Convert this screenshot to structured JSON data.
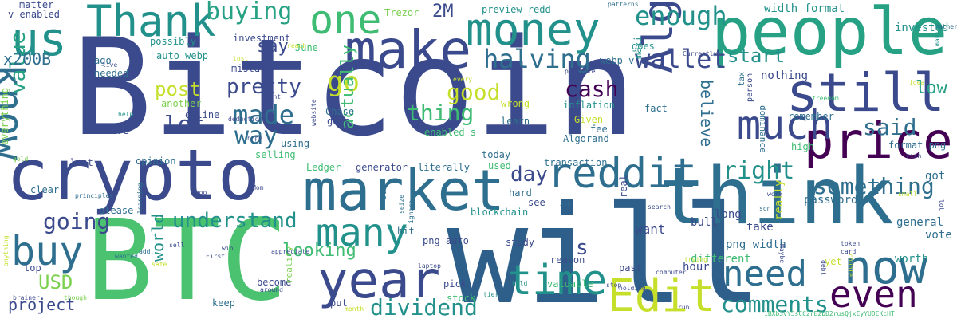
{
  "background": "#ffffff",
  "palette": [
    "#3b4a8c",
    "#2e6e8e",
    "#22918b",
    "#3fbc73",
    "#7bd04f",
    "#c6df2b",
    "#440154"
  ],
  "words": [
    {
      "text": "Bitcoin",
      "color": "#3b4a8c"
    },
    {
      "text": "will",
      "color": "#2e5f8a"
    },
    {
      "text": "BTC",
      "color": "#4ac26f"
    },
    {
      "text": "crypto",
      "color": "#3b4a8c"
    },
    {
      "text": "think",
      "color": "#2e6e8e"
    },
    {
      "text": "people",
      "color": "#26a184"
    },
    {
      "text": "make",
      "color": "#3b4a8c"
    },
    {
      "text": "market",
      "color": "#2e6e8e"
    },
    {
      "text": "year",
      "color": "#3b4a8c"
    },
    {
      "text": "price",
      "color": "#440154"
    },
    {
      "text": "still",
      "color": "#3b4a8c"
    },
    {
      "text": "now",
      "color": "#2e6e8e"
    },
    {
      "text": "money",
      "color": "#22918b"
    },
    {
      "text": "Thank",
      "color": "#22918b"
    },
    {
      "text": "one",
      "color": "#3fbc73"
    },
    {
      "text": "us",
      "color": "#22918b"
    },
    {
      "text": "know",
      "color": "#2e6e8e"
    },
    {
      "text": "Edit",
      "color": "#c6df2b"
    },
    {
      "text": "time",
      "color": "#22918b"
    },
    {
      "text": "reddit",
      "color": "#2e6e8e"
    },
    {
      "text": "much",
      "color": "#3b4a8c"
    },
    {
      "text": "Algo",
      "color": "#3b4a8c"
    },
    {
      "text": "many",
      "color": "#22918b"
    },
    {
      "text": "buy",
      "color": "#2e6e8e"
    },
    {
      "text": "need",
      "color": "#2e6e8e"
    },
    {
      "text": "even",
      "color": "#440154"
    },
    {
      "text": "wallet",
      "color": "#3b4a8c"
    },
    {
      "text": "made",
      "color": "#2e6e8e"
    },
    {
      "text": "way",
      "color": "#2e6e8e"
    },
    {
      "text": "comments",
      "color": "#22918b"
    },
    {
      "text": "dividend",
      "color": "#22918b"
    },
    {
      "text": "understand",
      "color": "#22918b"
    },
    {
      "text": "going",
      "color": "#3b4a8c"
    },
    {
      "text": "enough",
      "color": "#22918b"
    },
    {
      "text": "buying",
      "color": "#26a184"
    },
    {
      "text": "halving",
      "color": "#2e6e8e"
    },
    {
      "text": "right",
      "color": "#22918b"
    },
    {
      "text": "something",
      "color": "#2e6e8e"
    },
    {
      "text": "said",
      "color": "#2e6e8e"
    },
    {
      "text": "pretty",
      "color": "#3b4a8c"
    },
    {
      "text": "go",
      "color": "#c6df2b"
    },
    {
      "text": "good",
      "color": "#c6df2b"
    },
    {
      "text": "cash",
      "color": "#440154"
    },
    {
      "text": "thing",
      "color": "#3fbc73"
    },
    {
      "text": "start",
      "color": "#22918b"
    },
    {
      "text": "day",
      "color": "#3b4a8c"
    },
    {
      "text": "let",
      "color": "#3b4a8c"
    },
    {
      "text": "post",
      "color": "#c6df2b"
    },
    {
      "text": "value",
      "color": "#26a184"
    },
    {
      "text": "USD",
      "color": "#7bd04f"
    },
    {
      "text": "project",
      "color": "#3b4a8c"
    },
    {
      "text": "looking",
      "color": "#3fbc73"
    },
    {
      "text": "low",
      "color": "#26a184"
    },
    {
      "text": "s",
      "color": "#3b4a8c"
    },
    {
      "text": "actually",
      "color": "#3fbc73"
    },
    {
      "text": "believe",
      "color": "#2e6e8e"
    },
    {
      "text": "2M",
      "color": "#3b4a8c"
    },
    {
      "text": "say",
      "color": "#3b4a8c"
    },
    {
      "text": "x200B",
      "color": "#2e6e8e"
    },
    {
      "text": "world",
      "color": "#22918b"
    },
    {
      "text": "want",
      "color": "#3b4a8c"
    },
    {
      "text": "hour",
      "color": "#3b4a8c"
    },
    {
      "text": "different",
      "color": "#3fbc73"
    },
    {
      "text": "password",
      "color": "#2e6e8e"
    },
    {
      "text": "vote",
      "color": "#2e6e8e"
    },
    {
      "text": "got",
      "color": "#2e6e8e"
    },
    {
      "text": "general",
      "color": "#2e6e8e"
    },
    {
      "text": "worth",
      "color": "#22918b"
    },
    {
      "text": "bull",
      "color": "#3b4a8c"
    },
    {
      "text": "take",
      "color": "#3b4a8c"
    },
    {
      "text": "long",
      "color": "#3b4a8c"
    },
    {
      "text": "nothing",
      "color": "#3b4a8c"
    },
    {
      "text": "really",
      "color": "#c6df2b"
    },
    {
      "text": "png width",
      "color": "#2e6e8e"
    },
    {
      "text": "width format",
      "color": "#22918b"
    },
    {
      "text": "invested",
      "color": "#22918b"
    },
    {
      "text": "preview redd",
      "color": "#22918b"
    },
    {
      "text": "Trezor",
      "color": "#7bd04f"
    },
    {
      "text": "v enabled",
      "color": "#3b4a8c"
    },
    {
      "text": "matter",
      "color": "#3b4a8c"
    },
    {
      "text": "possibly",
      "color": "#22918b"
    },
    {
      "text": "investment",
      "color": "#3b4a8c"
    },
    {
      "text": "auto webp",
      "color": "#22918b"
    },
    {
      "text": "webp v",
      "color": "#2e6e8e"
    },
    {
      "text": "mistake",
      "color": "#3b4a8c"
    },
    {
      "text": "June",
      "color": "#3fbc73"
    },
    {
      "text": "goes",
      "color": "#22918b"
    },
    {
      "text": "maxi",
      "color": "#22918b"
    },
    {
      "text": "ago",
      "color": "#2e6e8e"
    },
    {
      "text": "needed",
      "color": "#2e6e8e"
    },
    {
      "text": "another",
      "color": "#7bd04f"
    },
    {
      "text": "online",
      "color": "#3b4a8c"
    },
    {
      "text": "entire",
      "color": "#3b4a8c"
    },
    {
      "text": "Chase",
      "color": "#2e6e8e"
    },
    {
      "text": "guys",
      "color": "#3b4a8c"
    },
    {
      "text": "wrong",
      "color": "#c6df2b"
    },
    {
      "text": "learn",
      "color": "#2e6e8e"
    },
    {
      "text": "inflation",
      "color": "#22918b"
    },
    {
      "text": "Given",
      "color": "#c6df2b"
    },
    {
      "text": "fee",
      "color": "#2e6e8e"
    },
    {
      "text": "Algorand",
      "color": "#2e6e8e"
    },
    {
      "text": "fact",
      "color": "#2e6e8e"
    },
    {
      "text": "enabled s",
      "color": "#3fbc73"
    },
    {
      "text": "tax",
      "color": "#2e6e8e"
    },
    {
      "text": "person",
      "color": "#3b4a8c"
    },
    {
      "text": "remember",
      "color": "#2e6e8e"
    },
    {
      "text": "high",
      "color": "#3fbc73"
    },
    {
      "text": "format png",
      "color": "#2e6e8e"
    },
    {
      "text": "dominance",
      "color": "#2e6e8e"
    },
    {
      "text": "selling",
      "color": "#3fbc73"
    },
    {
      "text": "using",
      "color": "#2e6e8e"
    },
    {
      "text": "today",
      "color": "#2e6e8e"
    },
    {
      "text": "transaction",
      "color": "#2e6e8e"
    },
    {
      "text": "opinion",
      "color": "#2e6e8e"
    },
    {
      "text": "last",
      "color": "#3b4a8c"
    },
    {
      "text": "everything",
      "color": "#7bd04f"
    },
    {
      "text": "clear",
      "color": "#2e6e8e"
    },
    {
      "text": "Ledger",
      "color": "#3fbc73"
    },
    {
      "text": "generator",
      "color": "#3b4a8c"
    },
    {
      "text": "literally",
      "color": "#2e6e8e"
    },
    {
      "text": "used",
      "color": "#3fbc73"
    },
    {
      "text": "sub",
      "color": "#2e6e8e"
    },
    {
      "text": "hard",
      "color": "#2e6e8e"
    },
    {
      "text": "see",
      "color": "#3b4a8c"
    },
    {
      "text": "blockchain",
      "color": "#22918b"
    },
    {
      "text": "please",
      "color": "#2e6e8e"
    },
    {
      "text": "hit",
      "color": "#2e6e8e"
    },
    {
      "text": "png auto",
      "color": "#3b4a8c"
    },
    {
      "text": "study",
      "color": "#3b4a8c"
    },
    {
      "text": "reason",
      "color": "#3b4a8c"
    },
    {
      "text": "past",
      "color": "#3b4a8c"
    },
    {
      "text": "real",
      "color": "#3b4a8c"
    },
    {
      "text": "yet",
      "color": "#c6df2b"
    },
    {
      "text": "top",
      "color": "#3b4a8c"
    },
    {
      "text": "become",
      "color": "#3b4a8c"
    },
    {
      "text": "keep",
      "color": "#2e6e8e"
    },
    {
      "text": "pick",
      "color": "#3b4a8c"
    },
    {
      "text": "stock",
      "color": "#3fbc73"
    },
    {
      "text": "put",
      "color": "#3b4a8c"
    },
    {
      "text": "valuable",
      "color": "#3fbc73"
    },
    {
      "text": "reality",
      "color": "#7bd04f"
    },
    {
      "text": "rather",
      "color": "#2e6e8e"
    },
    {
      "text": "making",
      "color": "#22918b"
    },
    {
      "text": "patterns",
      "color": "#2e6e8e"
    },
    {
      "text": "live",
      "color": "#3b4a8c"
    },
    {
      "text": "lost",
      "color": "#c6df2b"
    },
    {
      "text": "reach",
      "color": "#c6df2b"
    },
    {
      "text": "every",
      "color": "#c6df2b"
    },
    {
      "text": "possible",
      "color": "#3b4a8c"
    },
    {
      "text": "freedom",
      "color": "#3fbc73"
    },
    {
      "text": "Currently",
      "color": "#3b4a8c"
    },
    {
      "text": "website",
      "color": "#3b4a8c"
    },
    {
      "text": "help",
      "color": "#22918b"
    },
    {
      "text": "might",
      "color": "#3b4a8c"
    },
    {
      "text": "deductions",
      "color": "#3b4a8c"
    },
    {
      "text": "hope",
      "color": "#3b4a8c"
    },
    {
      "text": "gold",
      "color": "#7bd04f"
    },
    {
      "text": "Choo",
      "color": "#3b4a8c"
    },
    {
      "text": "Mom",
      "color": "#3b4a8c"
    },
    {
      "text": "principles",
      "color": "#2e6e8e"
    },
    {
      "text": "learning",
      "color": "#2e6e8e"
    },
    {
      "text": "ignore",
      "color": "#2e6e8e"
    },
    {
      "text": "seize",
      "color": "#2e6e8e"
    },
    {
      "text": "Job",
      "color": "#2e6e8e"
    },
    {
      "text": "search",
      "color": "#3b4a8c"
    },
    {
      "text": "son",
      "color": "#2e6e8e"
    },
    {
      "text": "work",
      "color": "#3b4a8c"
    },
    {
      "text": "idea",
      "color": "#c6df2b"
    },
    {
      "text": "rich",
      "color": "#3b4a8c"
    },
    {
      "text": "token",
      "color": "#3b4a8c"
    },
    {
      "text": "card",
      "color": "#3b4a8c"
    },
    {
      "text": "lot",
      "color": "#3b4a8c"
    },
    {
      "text": "small",
      "color": "#c6df2b"
    },
    {
      "text": "trying",
      "color": "#c6df2b"
    },
    {
      "text": "computer",
      "color": "#3b4a8c"
    },
    {
      "text": "Maybe",
      "color": "#3b4a8c"
    },
    {
      "text": "couple",
      "color": "#c6df2b"
    },
    {
      "text": "holding",
      "color": "#3b4a8c"
    },
    {
      "text": "stop",
      "color": "#3b4a8c"
    },
    {
      "text": "hold",
      "color": "#22918b"
    },
    {
      "text": "tier",
      "color": "#22918b"
    },
    {
      "text": "laptop",
      "color": "#3b4a8c"
    },
    {
      "text": "appreciate",
      "color": "#3b4a8c"
    },
    {
      "text": "First",
      "color": "#3b4a8c"
    },
    {
      "text": "win",
      "color": "#3b4a8c"
    },
    {
      "text": "sell",
      "color": "#3b4a8c"
    },
    {
      "text": "add",
      "color": "#2e6e8e"
    },
    {
      "text": "wanted",
      "color": "#2e6e8e"
    },
    {
      "text": "safe",
      "color": "#c6df2b"
    },
    {
      "text": "though",
      "color": "#7bd04f"
    },
    {
      "text": "brainer",
      "color": "#3b4a8c"
    },
    {
      "text": "anything",
      "color": "#c6df2b"
    },
    {
      "text": "around",
      "color": "#3b4a8c"
    },
    {
      "text": "month",
      "color": "#c6df2b"
    },
    {
      "text": "run",
      "color": "#3b4a8c"
    },
    {
      "text": "debt",
      "color": "#3b4a8c"
    },
    {
      "text": "1BXb3vY5sCC2rB2bD2rusQjxEyYUDEKcHT",
      "color": "#3fbc73"
    }
  ]
}
